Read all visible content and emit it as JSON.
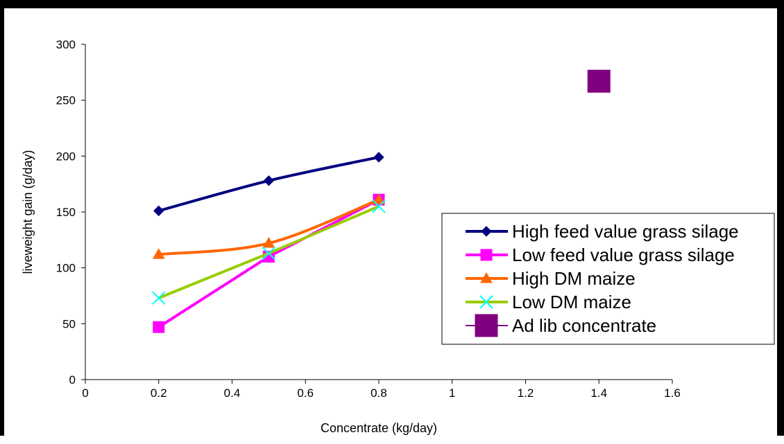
{
  "chart_data": {
    "type": "line",
    "title": "",
    "xlabel": "Concentrate (kg/day)",
    "ylabel": "liveweight gain (g/day)",
    "xlim": [
      0,
      1.6
    ],
    "ylim": [
      0,
      300
    ],
    "x_ticks": [
      "0",
      "0.2",
      "0.4",
      "0.6",
      "0.8",
      "1",
      "1.2",
      "1.4",
      "1.6"
    ],
    "y_ticks": [
      "0",
      "50",
      "100",
      "150",
      "200",
      "250",
      "300"
    ],
    "grid": false,
    "legend_position": "right",
    "series": [
      {
        "name": "High feed value grass silage",
        "marker": "diamond",
        "color": "#000080",
        "smooth": true,
        "points": [
          [
            0.2,
            151
          ],
          [
            0.5,
            178
          ],
          [
            0.8,
            199
          ]
        ]
      },
      {
        "name": "Low feed value grass silage",
        "marker": "square",
        "color": "#FF00FF",
        "smooth": false,
        "points": [
          [
            0.2,
            47
          ],
          [
            0.5,
            110
          ],
          [
            0.8,
            161
          ]
        ]
      },
      {
        "name": "High DM maize",
        "marker": "triangle",
        "color": "#FF6600",
        "smooth": true,
        "points": [
          [
            0.2,
            112
          ],
          [
            0.5,
            122
          ],
          [
            0.8,
            161
          ]
        ]
      },
      {
        "name": "Low DM maize",
        "marker": "x",
        "color": "#00FFFF",
        "line_color": "#99CC00",
        "smooth": false,
        "points": [
          [
            0.2,
            73
          ],
          [
            0.5,
            113
          ],
          [
            0.8,
            155
          ]
        ]
      },
      {
        "name": "Ad lib concentrate",
        "marker": "big-square",
        "color": "#800080",
        "smooth": false,
        "points": [
          [
            1.4,
            267
          ]
        ]
      }
    ]
  }
}
